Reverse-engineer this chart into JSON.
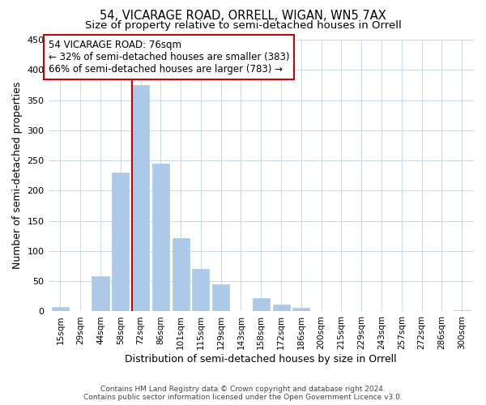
{
  "title": "54, VICARAGE ROAD, ORRELL, WIGAN, WN5 7AX",
  "subtitle": "Size of property relative to semi-detached houses in Orrell",
  "xlabel": "Distribution of semi-detached houses by size in Orrell",
  "ylabel": "Number of semi-detached properties",
  "bar_labels": [
    "15sqm",
    "29sqm",
    "44sqm",
    "58sqm",
    "72sqm",
    "86sqm",
    "101sqm",
    "115sqm",
    "129sqm",
    "143sqm",
    "158sqm",
    "172sqm",
    "186sqm",
    "200sqm",
    "215sqm",
    "229sqm",
    "243sqm",
    "257sqm",
    "272sqm",
    "286sqm",
    "300sqm"
  ],
  "bar_values": [
    7,
    0,
    58,
    230,
    375,
    245,
    122,
    70,
    45,
    0,
    22,
    11,
    6,
    0,
    0,
    0,
    0,
    0,
    0,
    0,
    2
  ],
  "bar_color": "#adc9e8",
  "red_line_color": "#cc0000",
  "ylim": [
    0,
    450
  ],
  "yticks": [
    0,
    50,
    100,
    150,
    200,
    250,
    300,
    350,
    400,
    450
  ],
  "annotation_title": "54 VICARAGE ROAD: 76sqm",
  "annotation_line1": "← 32% of semi-detached houses are smaller (383)",
  "annotation_line2": "66% of semi-detached houses are larger (783) →",
  "annotation_box_color": "#ffffff",
  "annotation_box_edge": "#cc0000",
  "footer_line1": "Contains HM Land Registry data © Crown copyright and database right 2024.",
  "footer_line2": "Contains public sector information licensed under the Open Government Licence v3.0.",
  "background_color": "#ffffff",
  "grid_color": "#c8d8e8",
  "title_fontsize": 10.5,
  "subtitle_fontsize": 9.5,
  "red_line_bar_index": 4
}
